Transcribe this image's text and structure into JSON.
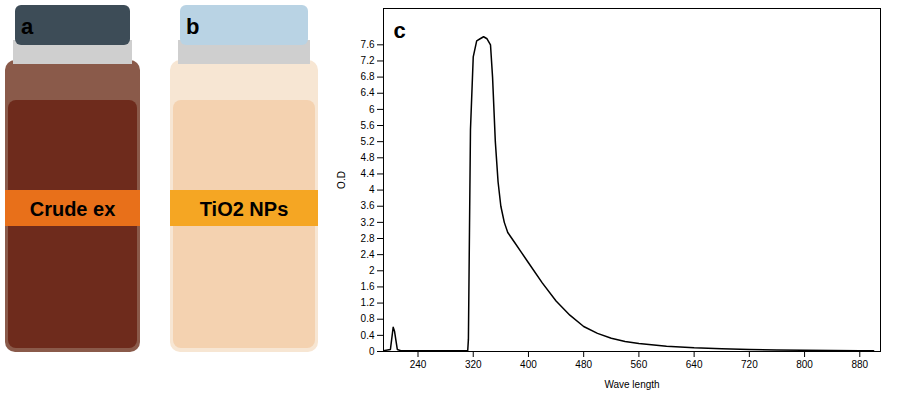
{
  "panels": [
    {
      "letter": "a",
      "label": "Crude ex"
    },
    {
      "letter": "b",
      "label": "TiO2 NPs"
    }
  ],
  "chart_data": {
    "type": "line",
    "panel_label": "c",
    "xlabel": "Wave length",
    "ylabel": "O.D",
    "color": "#000000",
    "x": [
      190,
      200,
      204,
      206,
      210,
      215,
      312,
      313,
      316,
      320,
      325,
      330,
      335,
      340,
      345,
      348,
      352,
      356,
      360,
      365,
      370,
      380,
      390,
      400,
      420,
      440,
      460,
      480,
      500,
      520,
      540,
      560,
      600,
      640,
      680,
      720,
      760,
      800,
      840,
      880,
      900
    ],
    "values": [
      0.02,
      0.05,
      0.6,
      0.5,
      0.05,
      0.02,
      0.02,
      0.3,
      5.5,
      7.3,
      7.7,
      7.75,
      7.8,
      7.75,
      7.6,
      6.8,
      5.2,
      4.2,
      3.6,
      3.2,
      2.95,
      2.7,
      2.45,
      2.2,
      1.7,
      1.25,
      0.9,
      0.62,
      0.45,
      0.33,
      0.25,
      0.2,
      0.13,
      0.09,
      0.07,
      0.05,
      0.04,
      0.03,
      0.025,
      0.02,
      0.02
    ],
    "xlim": [
      190,
      910
    ],
    "ylim": [
      0,
      8.5
    ],
    "xticks": [
      240,
      320,
      400,
      480,
      560,
      640,
      720,
      800,
      880
    ],
    "yticks": [
      0,
      0.4,
      0.8,
      1.2,
      1.6,
      2,
      2.4,
      2.8,
      3.2,
      3.6,
      4,
      4.4,
      4.8,
      5.2,
      5.6,
      6,
      6.4,
      6.8,
      7.2,
      7.6
    ]
  }
}
